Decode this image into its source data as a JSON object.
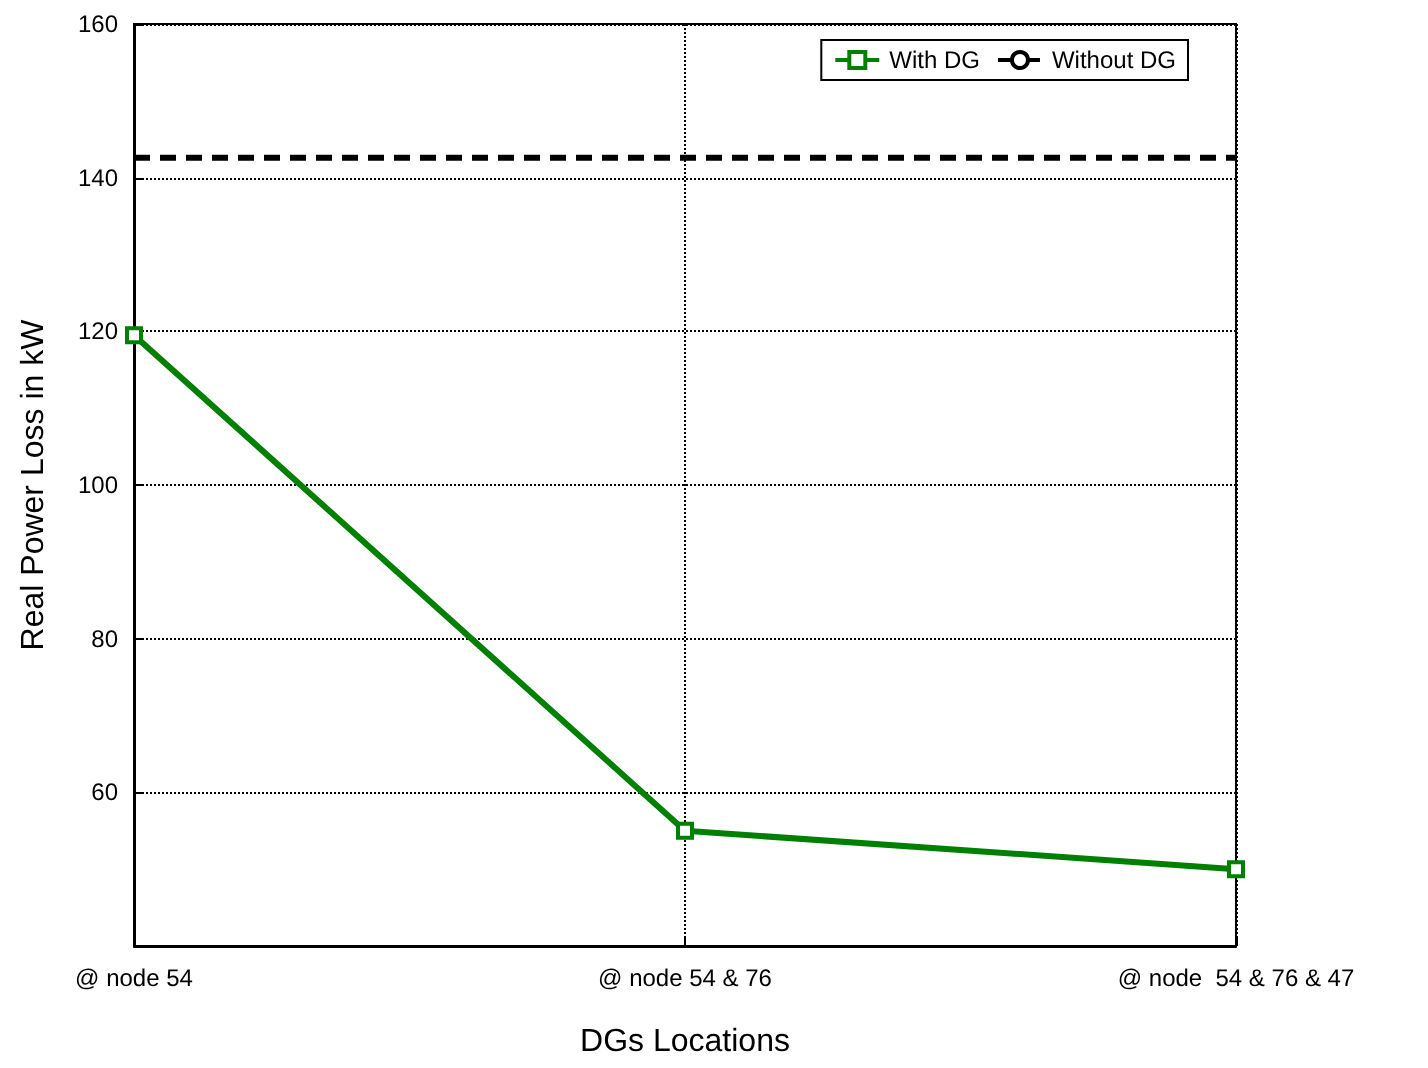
{
  "chart_data": {
    "type": "line",
    "xlabel": "DGs Locations",
    "ylabel": "Real Power Loss in kW",
    "categories": [
      "@ node 54",
      "@ node 54 & 76",
      "@ node  54 & 76 & 47"
    ],
    "series": [
      {
        "name": "With DG",
        "color": "#008000",
        "values": [
          119.5,
          55,
          50
        ],
        "marker": "square",
        "line_style": "solid"
      },
      {
        "name": "Without DG",
        "color": "#000000",
        "values": [
          142.6,
          142.6,
          142.6
        ],
        "marker": "none",
        "line_style": "dashed"
      }
    ],
    "ylim": [
      40,
      160
    ],
    "yticks": [
      60,
      80,
      100,
      120,
      140,
      160
    ],
    "grid": true,
    "legend": "top right"
  }
}
